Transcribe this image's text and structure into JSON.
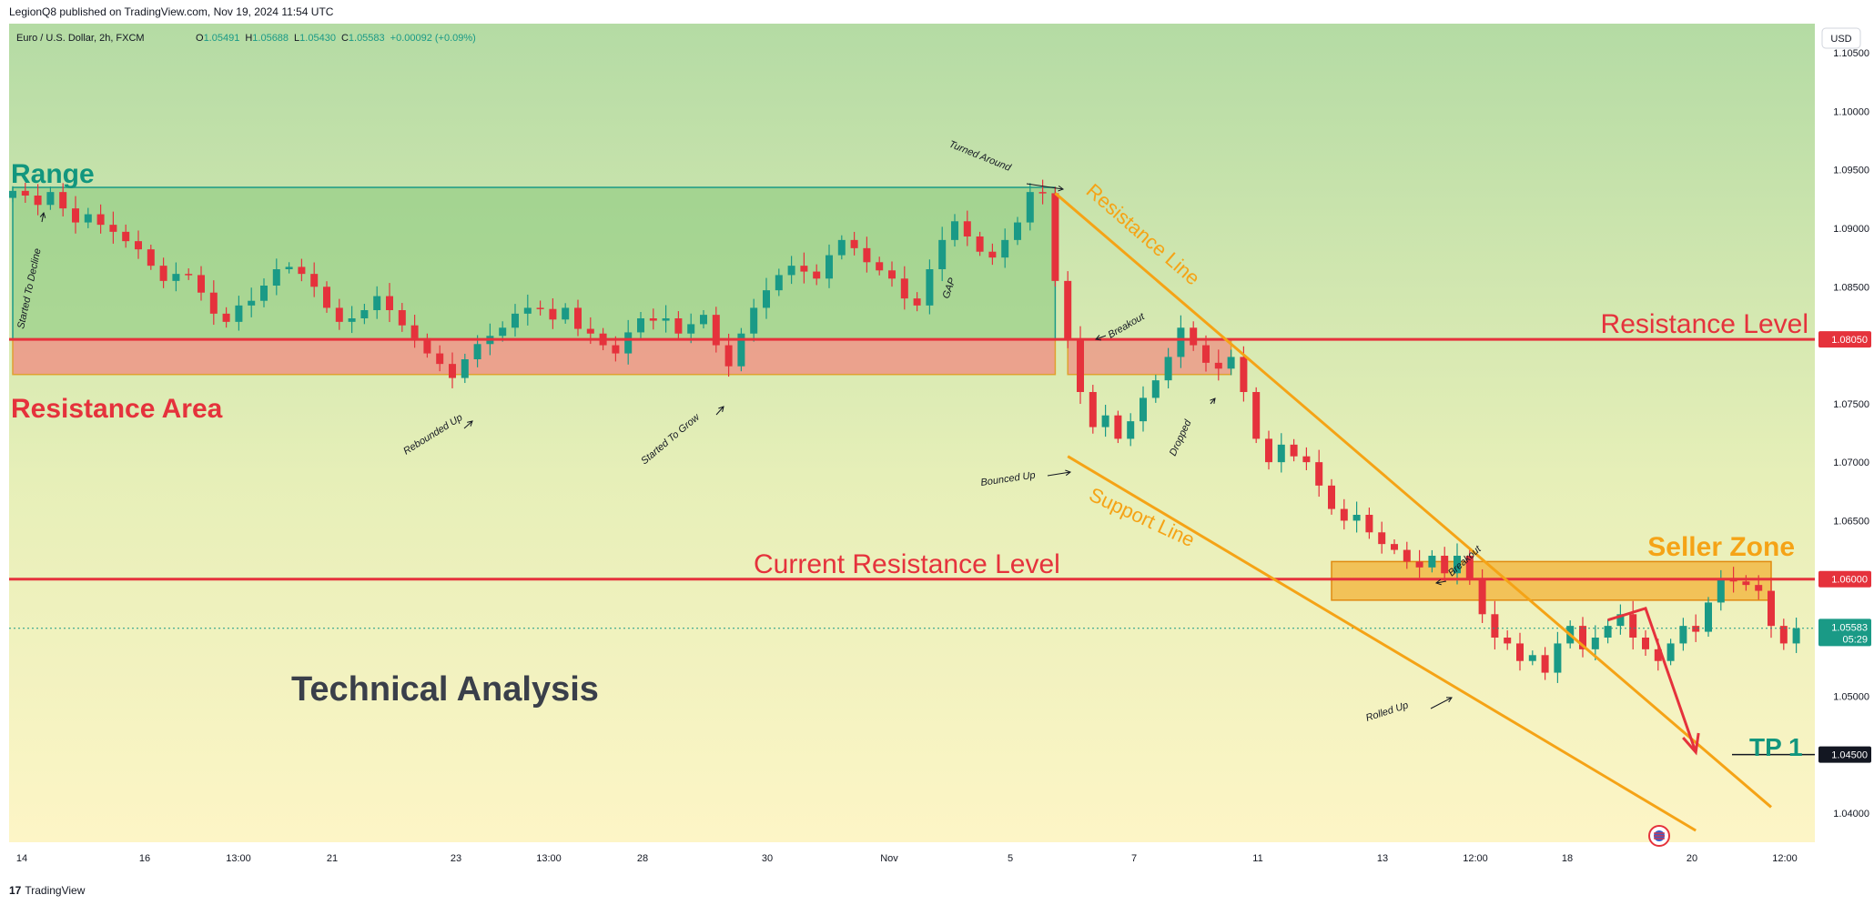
{
  "header": {
    "published_line": "LegionQ8 published on TradingView.com, Nov 19, 2024 11:54 UTC"
  },
  "symbol_bar": {
    "name": "Euro / U.S. Dollar, 2h, FXCM",
    "o_label": "O",
    "o_value": "1.05491",
    "h_label": "H",
    "h_value": "1.05688",
    "l_label": "L",
    "l_value": "1.05430",
    "c_label": "C",
    "c_value": "1.05583",
    "change": "+0.00092 (+0.09%)"
  },
  "currency_button": "USD",
  "footer": {
    "logo": "17",
    "brand": "TradingView"
  },
  "colors": {
    "bg_top": "#b4dba4",
    "bg_bottom": "#fdf5c6",
    "range_box": "#86c87c",
    "range_border": "#1a9a86",
    "resistance_area": "#f08a80",
    "red_line": "#e5323c",
    "orange": "#f5a316",
    "teal_text": "#12967e",
    "red_text": "#e5323c",
    "up": "#1a9a86",
    "down": "#e5323c"
  },
  "chart_data": {
    "type": "candlestick",
    "symbol": "Euro / U.S. Dollar",
    "interval": "2h",
    "y_axis": {
      "min": 1.0375,
      "max": 1.1075,
      "ticks": [
        "1.10500",
        "1.10000",
        "1.09500",
        "1.09000",
        "1.08500",
        "1.08050",
        "1.07500",
        "1.07000",
        "1.06500",
        "1.06000",
        "1.05500",
        "1.05000",
        "1.04500",
        "1.04000"
      ]
    },
    "x_axis": {
      "labels": [
        "14",
        "16",
        "13:00",
        "21",
        "23",
        "13:00",
        "28",
        "30",
        "Nov",
        "5",
        "7",
        "11",
        "13",
        "12:00",
        "18",
        "20",
        "12:00"
      ]
    },
    "price_tags": [
      {
        "value": "1.08050",
        "style": "red"
      },
      {
        "value": "1.06000",
        "style": "red"
      },
      {
        "value": "1.05583",
        "sub": "05:29",
        "style": "green"
      },
      {
        "value": "1.04500",
        "style": "dark"
      }
    ],
    "closes": [
      1.0932,
      1.0928,
      1.092,
      1.0931,
      1.0917,
      1.0905,
      1.0912,
      1.0903,
      1.0897,
      1.0889,
      1.0882,
      1.0868,
      1.0855,
      1.0861,
      1.086,
      1.0845,
      1.0827,
      1.082,
      1.0834,
      1.0838,
      1.0851,
      1.0865,
      1.0867,
      1.0861,
      1.085,
      1.0832,
      1.082,
      1.0823,
      1.083,
      1.0842,
      1.083,
      1.0817,
      1.0806,
      1.0793,
      1.0784,
      1.0772,
      1.0788,
      1.0801,
      1.0808,
      1.0815,
      1.0827,
      1.0832,
      1.0831,
      1.0822,
      1.0832,
      1.0814,
      1.081,
      1.08,
      1.0793,
      1.0811,
      1.0823,
      1.0821,
      1.0823,
      1.081,
      1.0818,
      1.0826,
      1.08,
      1.0782,
      1.081,
      1.0832,
      1.0847,
      1.086,
      1.0868,
      1.0863,
      1.0857,
      1.0877,
      1.089,
      1.0883,
      1.0871,
      1.0864,
      1.0857,
      1.084,
      1.0834,
      1.0865,
      1.089,
      1.0906,
      1.0893,
      1.088,
      1.0875,
      1.089,
      1.0905,
      1.0931,
      1.093,
      1.0855,
      1.0805,
      1.076,
      1.073,
      1.074,
      1.072,
      1.0735,
      1.0755,
      1.077,
      1.079,
      1.0815,
      1.08,
      1.0785,
      1.078,
      1.079,
      1.076,
      1.072,
      1.07,
      1.0715,
      1.0705,
      1.07,
      1.068,
      1.066,
      1.065,
      1.0655,
      1.064,
      1.063,
      1.0625,
      1.0615,
      1.061,
      1.062,
      1.0605,
      1.062,
      1.06,
      1.057,
      1.055,
      1.0545,
      1.053,
      1.0535,
      1.052,
      1.0545,
      1.056,
      1.054,
      1.055,
      1.056,
      1.057,
      1.055,
      1.054,
      1.053,
      1.0545,
      1.056,
      1.0555,
      1.058,
      1.06,
      1.0598,
      1.0595,
      1.059,
      1.056,
      1.0545,
      1.0558
    ],
    "drawings": {
      "range_box": {
        "x_start": 0,
        "x_end": 83,
        "y_low": 1.0805,
        "y_high": 1.0935
      },
      "resistance_area": {
        "x_start": 0,
        "x_end": 83,
        "y_low": 1.0775,
        "y_high": 1.0805
      },
      "resistance_area_right": {
        "x_start": 84,
        "x_end": 97,
        "y_low": 1.0775,
        "y_high": 1.0805
      },
      "seller_zone": {
        "x_start": 105,
        "x_end": 140,
        "y_low": 1.0582,
        "y_high": 1.0615
      },
      "resistance_level": 1.0805,
      "current_resistance_level": 1.06,
      "tp1_level": 1.045,
      "resistance_line": {
        "from": [
          83,
          1.093
        ],
        "to": [
          140,
          1.0405
        ]
      },
      "support_line": {
        "from": [
          84,
          1.0705
        ],
        "to": [
          134,
          1.0385
        ]
      },
      "projection": [
        [
          127,
          1.0565
        ],
        [
          130,
          1.0575
        ],
        [
          134,
          1.0452
        ]
      ]
    },
    "labels": {
      "range": "Range",
      "resistance_area": "Resistance Area",
      "resistance_level": "Resistance Level",
      "current_resistance_level": "Current Resistance Level",
      "seller_zone": "Seller Zone",
      "tp1": "TP 1",
      "resistance_line": "Resistance Line",
      "support_line": "Support Line",
      "technical_analysis": "Technical Analysis",
      "started_to_decline": "Started To Decline",
      "rebounded_up": "Rebounded Up",
      "started_to_grow": "Started To Grow",
      "gap": "GAP",
      "turned_around": "Turned Around",
      "breakout_1": "Breakout",
      "bounced_up": "Bounced Up",
      "dropped": "Dropped",
      "breakout_2": "Breakout",
      "rolled_up": "Rolled Up"
    }
  }
}
